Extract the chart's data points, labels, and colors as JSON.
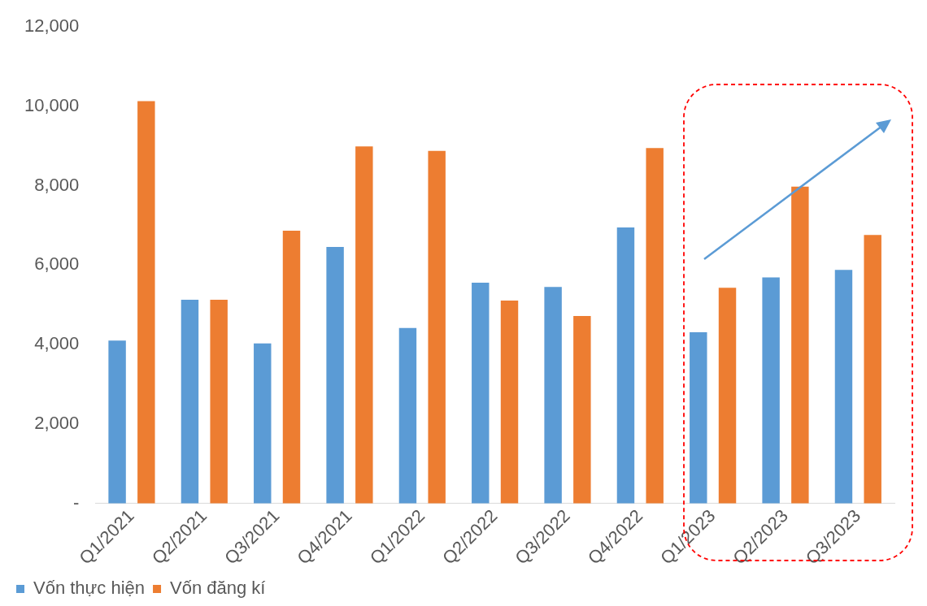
{
  "chart_data": {
    "type": "bar",
    "categories": [
      "Q1/2021",
      "Q2/2021",
      "Q3/2021",
      "Q4/2021",
      "Q1/2022",
      "Q2/2022",
      "Q3/2022",
      "Q4/2022",
      "Q1/2023",
      "Q2/2023",
      "Q3/2023"
    ],
    "series": [
      {
        "name": "Vốn thực hiện",
        "color": "#5b9bd5",
        "values": [
          4100,
          5130,
          4030,
          6460,
          4420,
          5560,
          5450,
          6950,
          4310,
          5690,
          5880
        ]
      },
      {
        "name": "Vốn đăng kí",
        "color": "#ed7d31",
        "values": [
          10130,
          5130,
          6870,
          8990,
          8880,
          5110,
          4720,
          8950,
          5430,
          7980,
          6760
        ]
      }
    ],
    "ylim": [
      0,
      12000
    ],
    "yticks": [
      {
        "value": 0,
        "label": "-"
      },
      {
        "value": 2000,
        "label": "2,000"
      },
      {
        "value": 4000,
        "label": "4,000"
      },
      {
        "value": 6000,
        "label": "6,000"
      },
      {
        "value": 8000,
        "label": "8,000"
      },
      {
        "value": 10000,
        "label": "10,000"
      },
      {
        "value": 12000,
        "label": "12,000"
      }
    ],
    "grid": false,
    "legend": "bottom"
  }
}
